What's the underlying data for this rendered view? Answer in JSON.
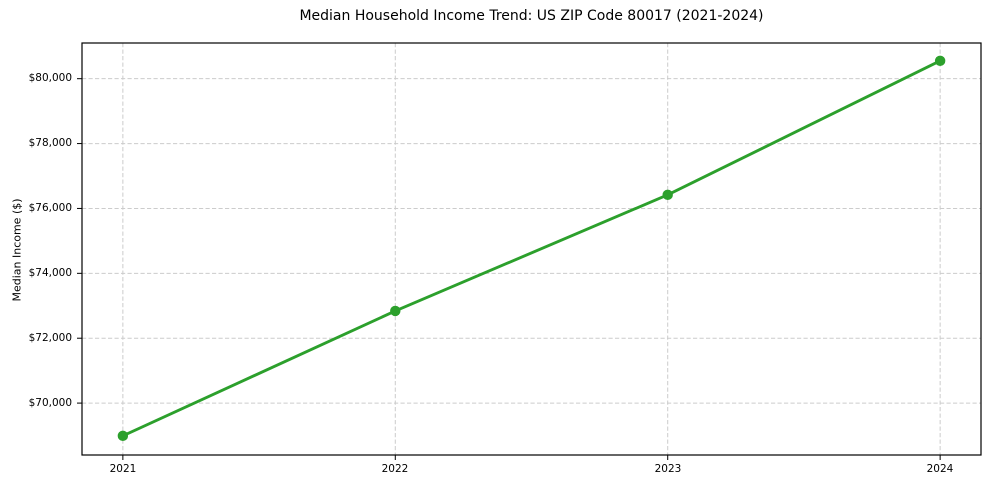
{
  "chart_data": {
    "type": "line",
    "title": "Median Household Income Trend: US ZIP Code 80017 (2021-2024)",
    "xlabel": "",
    "ylabel": "Median Income ($)",
    "x": [
      2021,
      2022,
      2023,
      2024
    ],
    "xtick_labels": [
      "2021",
      "2022",
      "2023",
      "2024"
    ],
    "values": [
      68990,
      72840,
      76420,
      80550
    ],
    "yticks": [
      70000,
      72000,
      74000,
      76000,
      78000,
      80000
    ],
    "ytick_labels": [
      "$70,000",
      "$72,000",
      "$74,000",
      "$76,000",
      "$78,000",
      "$80,000"
    ],
    "xlim": [
      2020.85,
      2024.15
    ],
    "ylim": [
      68400,
      81100
    ],
    "grid": true,
    "legend": "none",
    "marker": "circle",
    "colors": {
      "line": "#2ca02c",
      "grid": "#cccccc",
      "spine": "#000000",
      "text": "#000000",
      "background": "#ffffff"
    }
  }
}
